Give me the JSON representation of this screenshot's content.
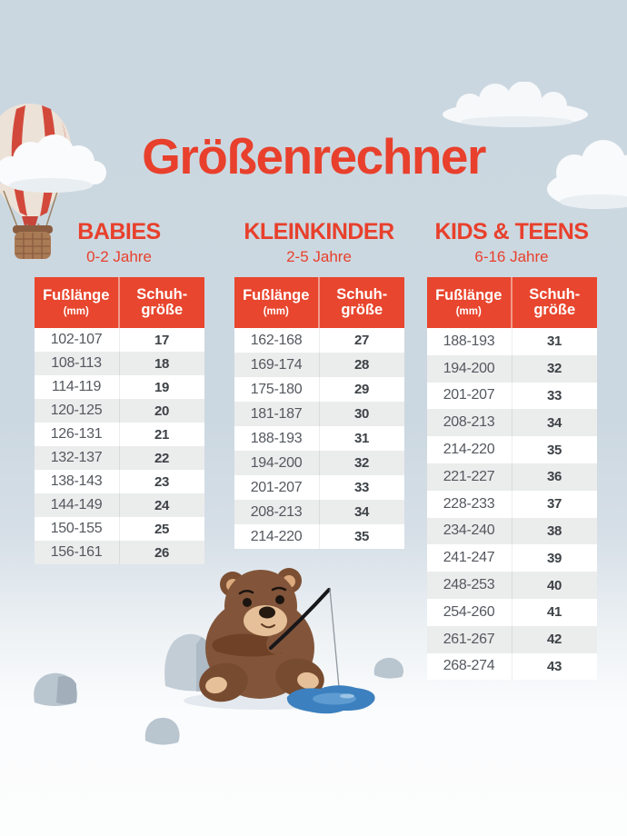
{
  "page": {
    "title": "Größenrechner"
  },
  "table_header": {
    "col1_line1": "Fußlänge",
    "col1_line2": "(mm)",
    "col2_line1": "Schuh-",
    "col2_line2": "größe"
  },
  "sections": [
    {
      "heading": "BABIES",
      "age_range": "0-2 Jahre",
      "rows": [
        [
          "102-107",
          "17"
        ],
        [
          "108-113",
          "18"
        ],
        [
          "114-119",
          "19"
        ],
        [
          "120-125",
          "20"
        ],
        [
          "126-131",
          "21"
        ],
        [
          "132-137",
          "22"
        ],
        [
          "138-143",
          "23"
        ],
        [
          "144-149",
          "24"
        ],
        [
          "150-155",
          "25"
        ],
        [
          "156-161",
          "26"
        ]
      ]
    },
    {
      "heading": "KLEINKINDER",
      "age_range": "2-5 Jahre",
      "rows": [
        [
          "162-168",
          "27"
        ],
        [
          "169-174",
          "28"
        ],
        [
          "175-180",
          "29"
        ],
        [
          "181-187",
          "30"
        ],
        [
          "188-193",
          "31"
        ],
        [
          "194-200",
          "32"
        ],
        [
          "201-207",
          "33"
        ],
        [
          "208-213",
          "34"
        ],
        [
          "214-220",
          "35"
        ]
      ]
    },
    {
      "heading": "KIDS & TEENS",
      "age_range": "6-16 Jahre",
      "rows": [
        [
          "188-193",
          "31"
        ],
        [
          "194-200",
          "32"
        ],
        [
          "201-207",
          "33"
        ],
        [
          "208-213",
          "34"
        ],
        [
          "214-220",
          "35"
        ],
        [
          "221-227",
          "36"
        ],
        [
          "228-233",
          "37"
        ],
        [
          "234-240",
          "38"
        ],
        [
          "241-247",
          "39"
        ],
        [
          "248-253",
          "40"
        ],
        [
          "254-260",
          "41"
        ],
        [
          "261-267",
          "42"
        ],
        [
          "268-274",
          "43"
        ]
      ]
    }
  ],
  "colors": {
    "accent_red": "#e8402c",
    "table_header_red": "#e8462e",
    "row_stripe_gray": "#ebecec",
    "sky_blue_background": "#ccd8e1",
    "puddle_blue": "#3c80bf"
  }
}
